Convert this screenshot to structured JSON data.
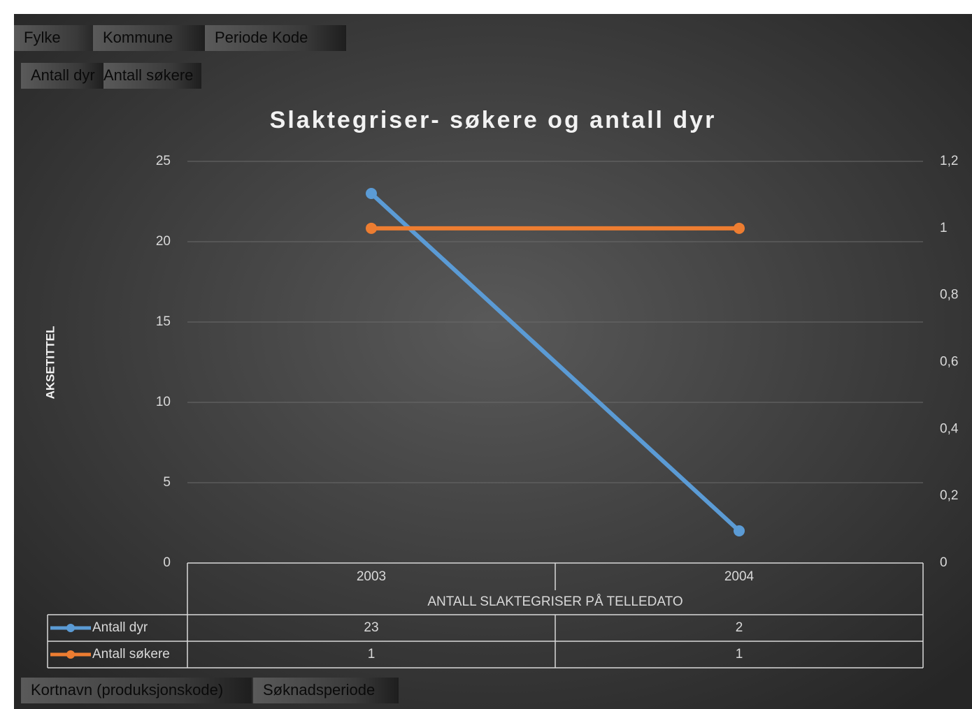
{
  "chart_data": {
    "type": "line",
    "title": "Slaktegriser- søkere og antall dyr",
    "y_axis_title": "AKSETITTEL",
    "x_axis_title": "ANTALL SLAKTEGRISER PÅ TELLEDATO",
    "filter_fields": [
      "Fylke",
      "Kommune",
      "Periode Kode"
    ],
    "value_fields": [
      "Antall dyr",
      "Antall søkere"
    ],
    "axis_fields": [
      "Kortnavn (produksjonskode)",
      "Søknadsperiode"
    ],
    "categories": [
      "2003",
      "2004"
    ],
    "series": [
      {
        "name": "Antall dyr",
        "color": "#5b9bd5",
        "values": [
          23,
          2
        ]
      },
      {
        "name": "Antall søkere",
        "color": "#ed7d31",
        "values": [
          1,
          1
        ],
        "axis": "y2"
      }
    ],
    "ylim": [
      0,
      25
    ],
    "yticks": [
      0,
      5,
      10,
      15,
      20,
      25
    ],
    "y2lim": [
      0,
      1.2
    ],
    "y2ticks": [
      0,
      {
        "value": 0.2,
        "label": "0,2"
      },
      {
        "value": 0.4,
        "label": "0,4"
      },
      {
        "value": 0.6,
        "label": "0,6"
      },
      {
        "value": 0.8,
        "label": "0,8"
      },
      1,
      {
        "value": 1.2,
        "label": "1,2"
      }
    ],
    "grid": true,
    "data_table": true
  }
}
